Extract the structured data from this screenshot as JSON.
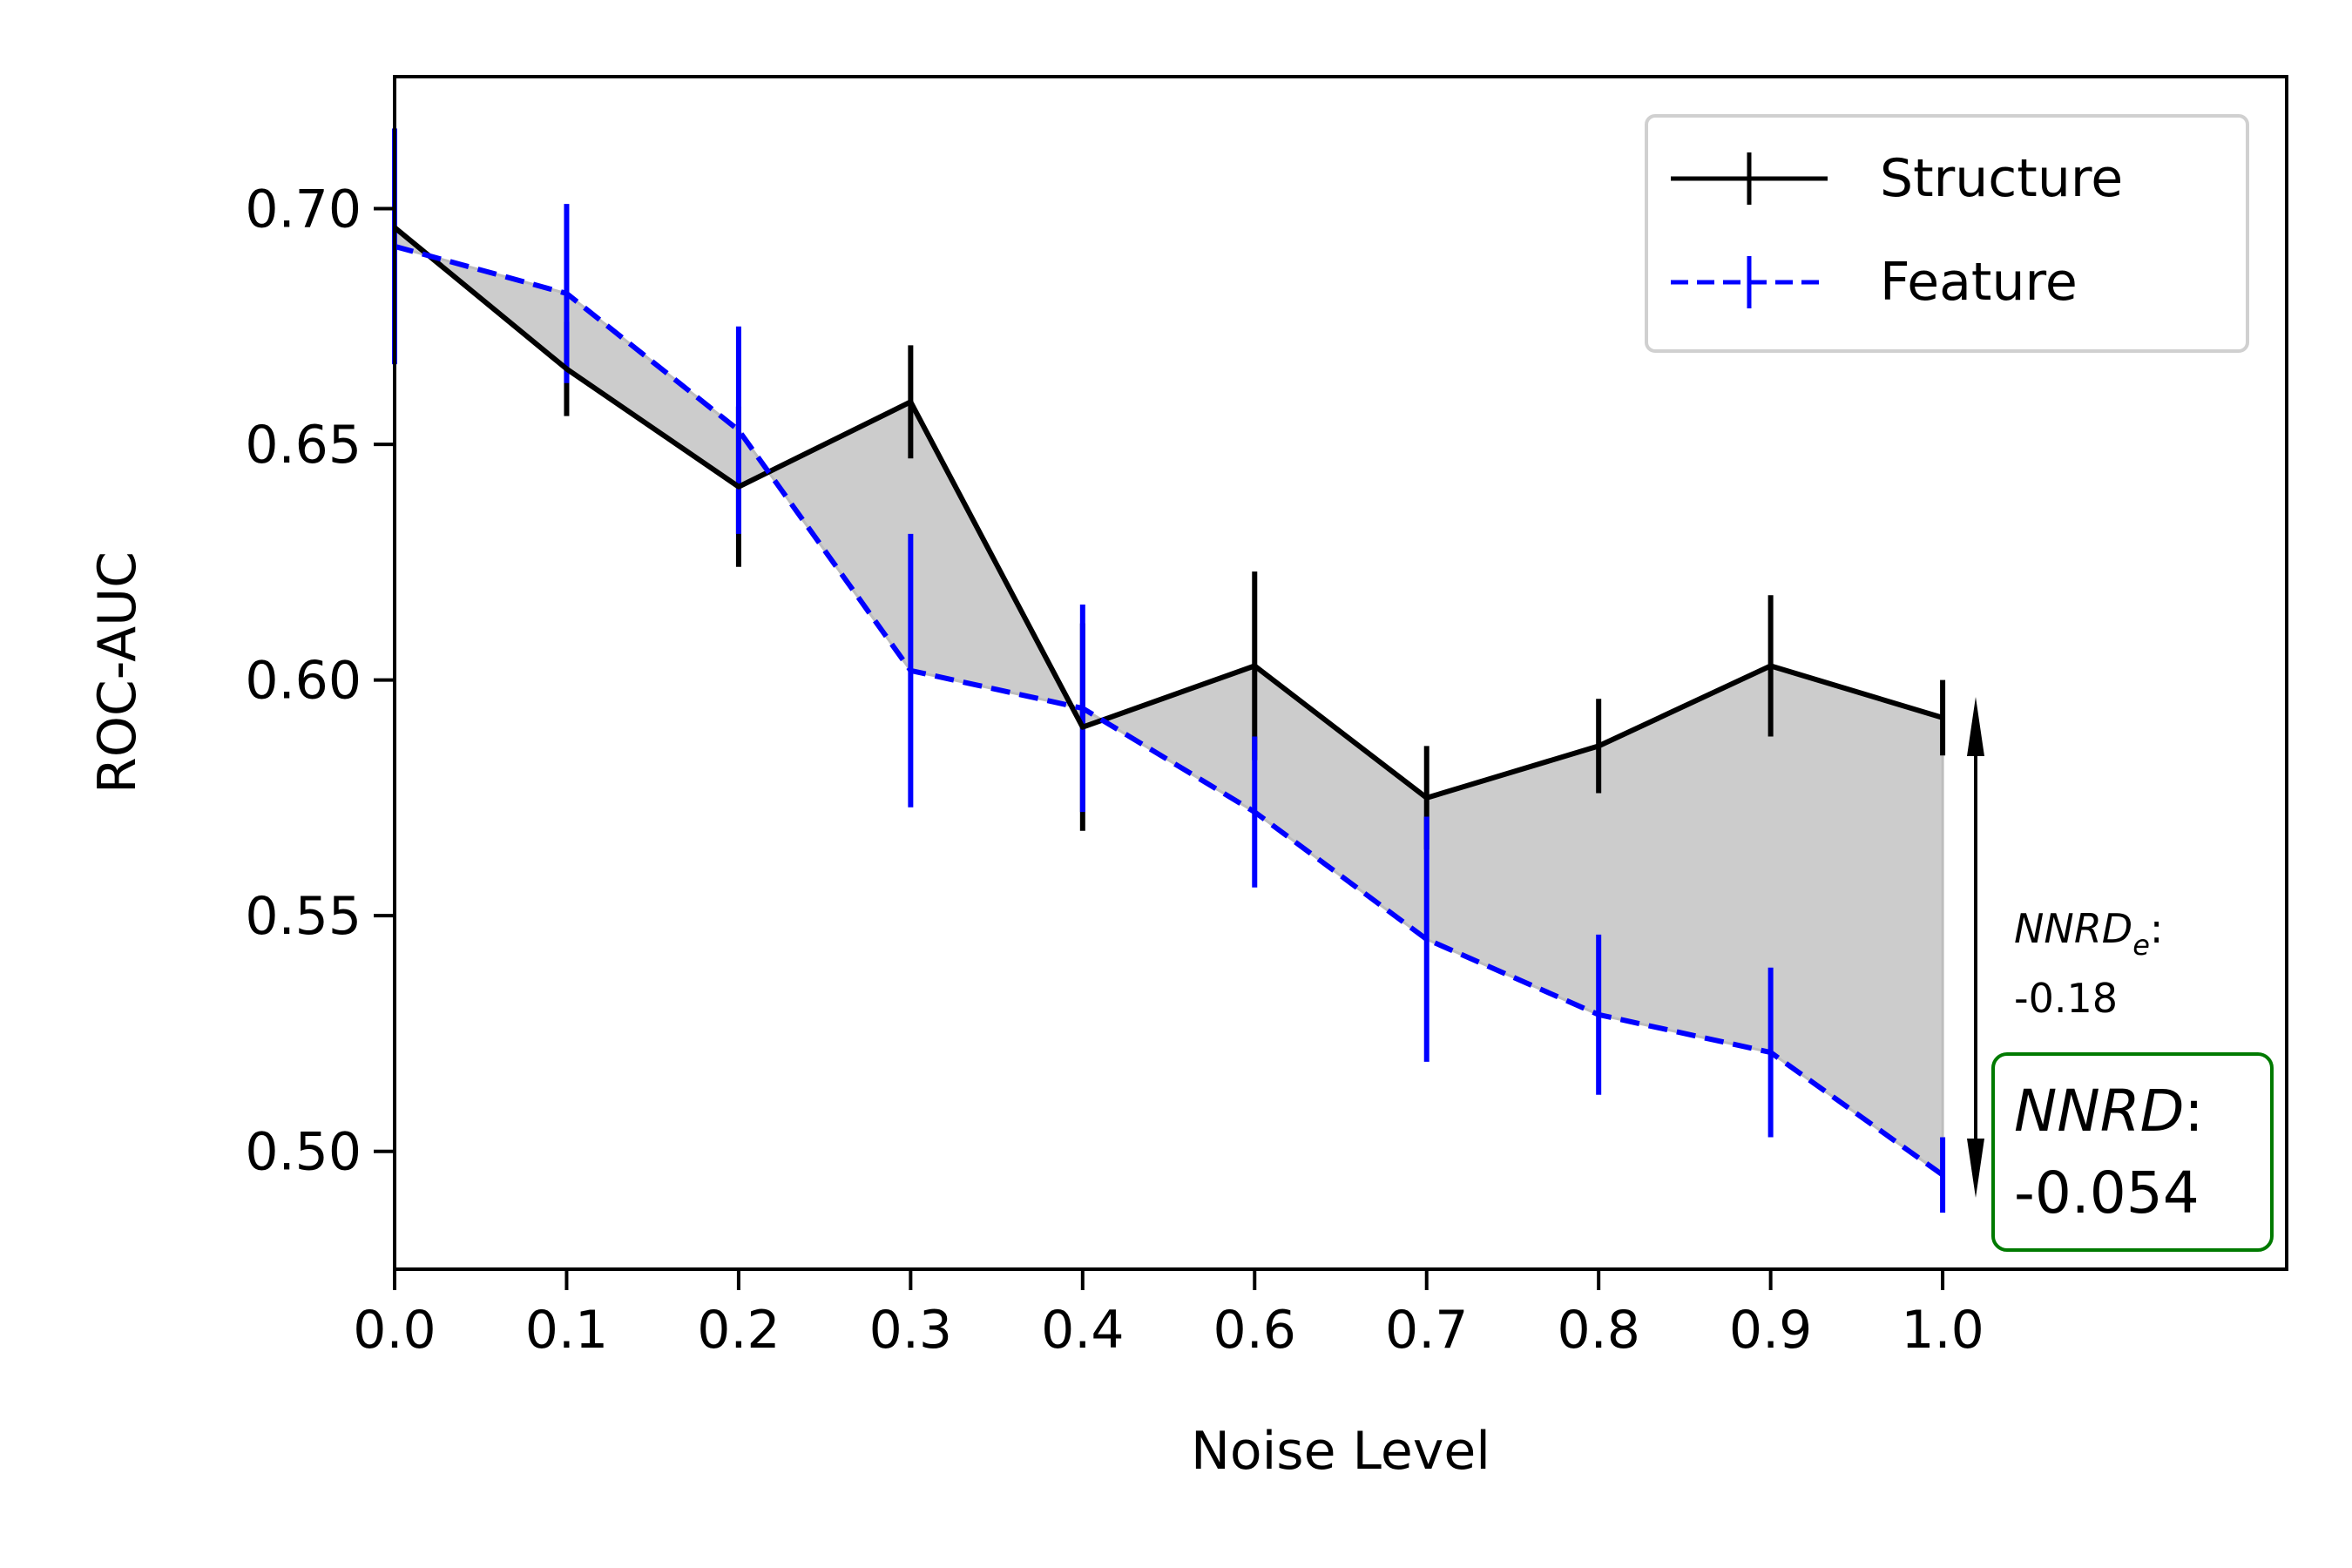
{
  "chart_data": {
    "type": "line",
    "xlabel": "Noise Level",
    "ylabel": "ROC-AUC",
    "x_tick_labels": [
      "0.0",
      "0.1",
      "0.2",
      "0.3",
      "0.4",
      "0.6",
      "0.7",
      "0.8",
      "0.9",
      "1.0"
    ],
    "y_ticks": [
      0.5,
      0.55,
      0.6,
      0.65,
      0.7
    ],
    "y_tick_labels": [
      "0.50",
      "0.55",
      "0.60",
      "0.65",
      "0.70"
    ],
    "ylim": [
      0.475,
      0.728
    ],
    "x_positions": [
      0,
      1,
      2,
      3,
      4,
      5,
      6,
      7,
      8,
      9
    ],
    "xlim": [
      0,
      11
    ],
    "legend_position": "top-right",
    "series": [
      {
        "name": "Structure",
        "color": "#000000",
        "style": "solid",
        "values": [
          0.696,
          0.666,
          0.641,
          0.659,
          0.59,
          0.603,
          0.575,
          0.586,
          0.603,
          0.592
        ],
        "errors": [
          0.021,
          0.01,
          0.017,
          0.012,
          0.022,
          0.02,
          0.011,
          0.01,
          0.015,
          0.008
        ]
      },
      {
        "name": "Feature",
        "color": "#0000ff",
        "style": "dashed",
        "values": [
          0.692,
          0.682,
          0.653,
          0.602,
          0.594,
          0.572,
          0.545,
          0.529,
          0.521,
          0.495
        ],
        "errors": [
          0.025,
          0.019,
          0.022,
          0.029,
          0.022,
          0.016,
          0.026,
          0.017,
          0.018,
          0.008
        ]
      }
    ],
    "fill_between": {
      "color": "#cccccc"
    },
    "annotations": {
      "nnrd_e_label": "NNRD",
      "nnrd_e_subscript": "e",
      "nnrd_e_colon": ":",
      "nnrd_e_value": "-0.18",
      "nnrd_label": "NNRD",
      "nnrd_colon": ":",
      "nnrd_value": "-0.054",
      "nnrd_box_color": "#007a00"
    }
  }
}
